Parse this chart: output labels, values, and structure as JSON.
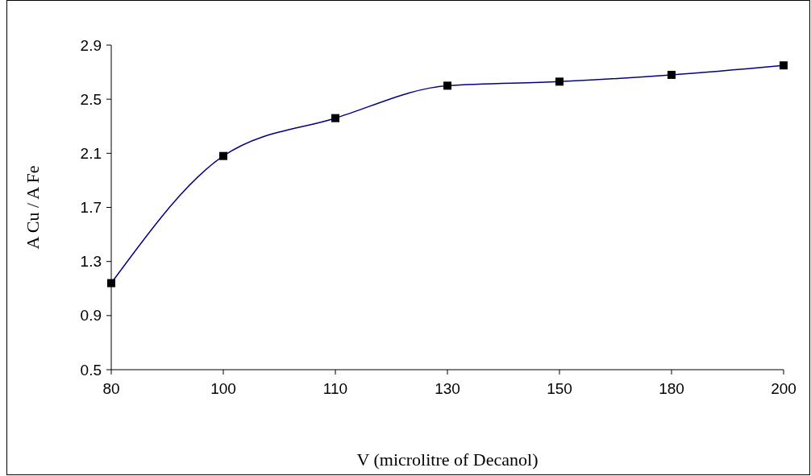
{
  "chart_data": {
    "type": "line",
    "xlabel": "V (microlitre of Decanol)",
    "ylabel": "A Cu / A Fe",
    "categories": [
      "80",
      "100",
      "110",
      "130",
      "150",
      "180",
      "200"
    ],
    "series": [
      {
        "color": "#000080",
        "values": [
          1.14,
          2.08,
          2.36,
          2.6,
          2.63,
          2.68,
          2.75
        ]
      }
    ],
    "ylim": [
      0.5,
      2.9
    ],
    "yticks": [
      0.5,
      0.9,
      1.3,
      1.7,
      2.1,
      2.5,
      2.9
    ],
    "marker": "square",
    "line_style": "solid"
  }
}
